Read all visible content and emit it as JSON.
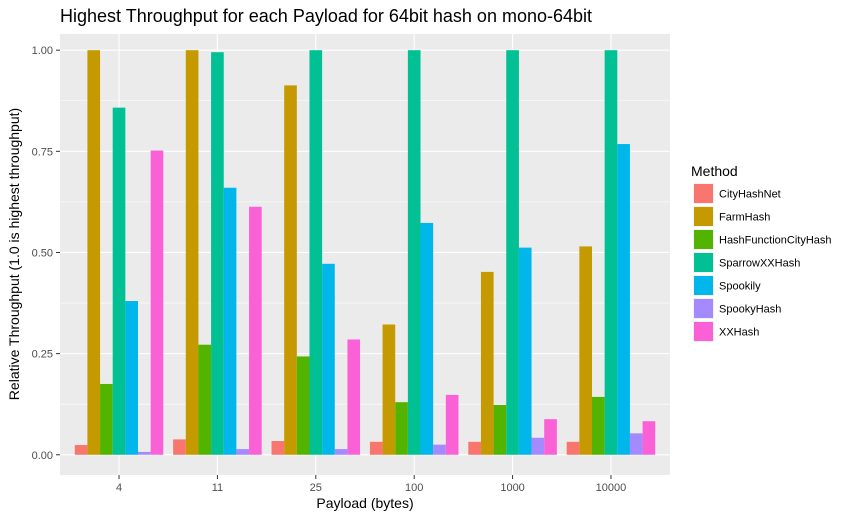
{
  "chart_data": {
    "type": "bar",
    "title": "Highest Throughput for each Payload for 64bit hash on mono-64bit",
    "xlabel": "Payload (bytes)",
    "ylabel": "Relative Throughput (1.0 is highest throughput)",
    "ylim": [
      -0.05,
      1.04
    ],
    "yticks": [
      0,
      0.25,
      0.5,
      0.75,
      1.0
    ],
    "ytick_labels": [
      "0.00",
      "0.25",
      "0.50",
      "0.75",
      "1.00"
    ],
    "categories": [
      "4",
      "11",
      "25",
      "100",
      "1000",
      "10000"
    ],
    "legend": {
      "title": "Method",
      "placement": "right"
    },
    "grid": true,
    "series": [
      {
        "name": "CityHashNet",
        "color": "#F8766D",
        "values": [
          0.024,
          0.038,
          0.034,
          0.032,
          0.032,
          0.032
        ]
      },
      {
        "name": "FarmHash",
        "color": "#C49A00",
        "values": [
          1.0,
          1.0,
          0.913,
          0.322,
          0.452,
          0.515
        ]
      },
      {
        "name": "HashFunctionCityHash",
        "color": "#53B400",
        "values": [
          0.175,
          0.272,
          0.243,
          0.13,
          0.123,
          0.143
        ]
      },
      {
        "name": "SparrowXXHash",
        "color": "#00C094",
        "values": [
          0.858,
          0.995,
          1.0,
          1.0,
          1.0,
          1.0
        ]
      },
      {
        "name": "Spookily",
        "color": "#00B6EB",
        "values": [
          0.38,
          0.66,
          0.472,
          0.573,
          0.512,
          0.768
        ]
      },
      {
        "name": "SpookyHash",
        "color": "#A58AFF",
        "values": [
          0.007,
          0.014,
          0.014,
          0.025,
          0.042,
          0.053
        ]
      },
      {
        "name": "XXHash",
        "color": "#FB61D7",
        "values": [
          0.752,
          0.613,
          0.285,
          0.148,
          0.088,
          0.083
        ]
      }
    ]
  }
}
